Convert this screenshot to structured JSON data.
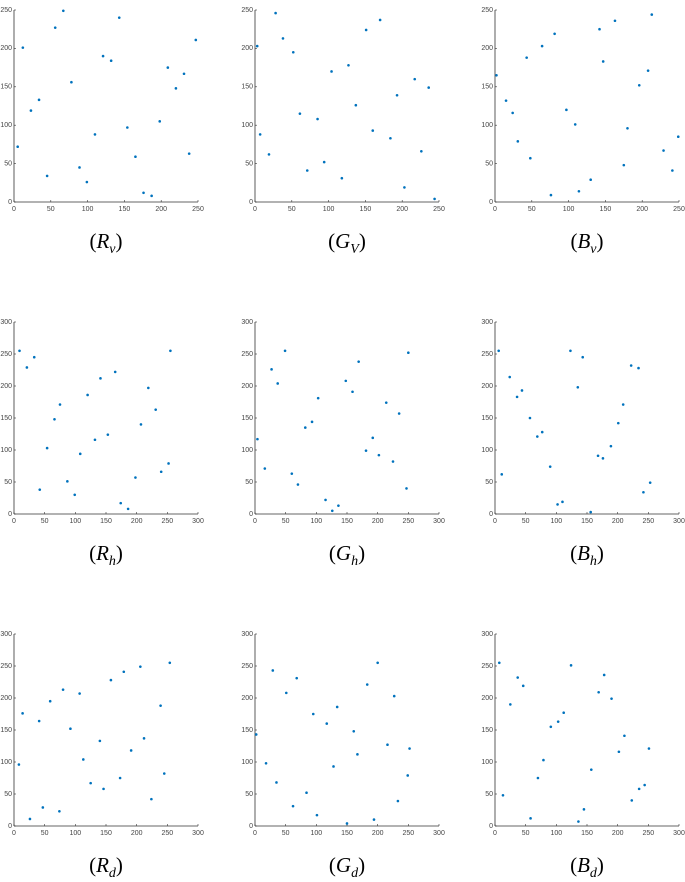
{
  "chart_data": [
    {
      "type": "scatter",
      "color": "#0072bd",
      "xlim": [
        0,
        250
      ],
      "ylim": [
        0,
        250
      ],
      "xticks": [
        0,
        50,
        100,
        150,
        200,
        250
      ],
      "yticks": [
        0,
        50,
        100,
        150,
        200,
        250
      ],
      "x": [
        12,
        45,
        78,
        110,
        143,
        176,
        209,
        238,
        23,
        56,
        89,
        121,
        154,
        187,
        220,
        247,
        5,
        34,
        67,
        99,
        132,
        165,
        198,
        231
      ],
      "y": [
        201,
        34,
        156,
        88,
        240,
        12,
        175,
        63,
        119,
        227,
        45,
        190,
        97,
        8,
        148,
        211,
        72,
        133,
        249,
        26,
        184,
        59,
        105,
        167
      ],
      "caption": {
        "open": "(",
        "symbol": "R",
        "subscript": "v",
        "close": ")"
      }
    },
    {
      "type": "scatter",
      "color": "#0072bd",
      "xlim": [
        0,
        250
      ],
      "ylim": [
        0,
        250
      ],
      "xticks": [
        0,
        50,
        100,
        150,
        200,
        250
      ],
      "yticks": [
        0,
        50,
        100,
        150,
        200,
        250
      ],
      "x": [
        7,
        38,
        71,
        104,
        137,
        170,
        203,
        236,
        19,
        52,
        85,
        118,
        151,
        184,
        217,
        244,
        28,
        61,
        94,
        127,
        160,
        193,
        226,
        3
      ],
      "y": [
        88,
        213,
        41,
        170,
        126,
        237,
        19,
        149,
        62,
        195,
        108,
        31,
        224,
        83,
        160,
        4,
        246,
        115,
        52,
        178,
        93,
        139,
        66,
        203
      ],
      "caption": {
        "open": "(",
        "symbol": "G",
        "subscript": "V",
        "close": ")"
      }
    },
    {
      "type": "scatter",
      "color": "#0072bd",
      "xlim": [
        0,
        250
      ],
      "ylim": [
        0,
        250
      ],
      "xticks": [
        0,
        50,
        100,
        150,
        200,
        250
      ],
      "yticks": [
        0,
        50,
        100,
        150,
        200,
        250
      ],
      "x": [
        15,
        48,
        81,
        114,
        147,
        180,
        213,
        241,
        2,
        31,
        64,
        97,
        130,
        163,
        196,
        229,
        43,
        76,
        109,
        142,
        175,
        208,
        24,
        249
      ],
      "y": [
        132,
        57,
        219,
        14,
        183,
        96,
        244,
        41,
        165,
        79,
        203,
        120,
        29,
        236,
        152,
        67,
        188,
        9,
        101,
        225,
        48,
        171,
        116,
        85
      ],
      "caption": {
        "open": "(",
        "symbol": "B",
        "subscript": "v",
        "close": ")"
      }
    },
    {
      "type": "scatter",
      "color": "#0072bd",
      "xlim": [
        0,
        300
      ],
      "ylim": [
        0,
        300
      ],
      "xticks": [
        0,
        50,
        100,
        150,
        200,
        250,
        300
      ],
      "yticks": [
        0,
        50,
        100,
        150,
        200,
        250,
        300
      ],
      "x": [
        9,
        42,
        75,
        108,
        141,
        174,
        207,
        240,
        21,
        54,
        87,
        120,
        153,
        186,
        219,
        252,
        33,
        66,
        99,
        132,
        165,
        198,
        231,
        255
      ],
      "y": [
        255,
        38,
        171,
        94,
        212,
        17,
        140,
        66,
        229,
        103,
        51,
        186,
        124,
        8,
        197,
        79,
        245,
        148,
        30,
        116,
        222,
        57,
        163,
        255
      ],
      "caption": {
        "open": "(",
        "symbol": "R",
        "subscript": "h",
        "close": ")"
      }
    },
    {
      "type": "scatter",
      "color": "#0072bd",
      "xlim": [
        0,
        300
      ],
      "ylim": [
        0,
        300
      ],
      "xticks": [
        0,
        50,
        100,
        150,
        200,
        250,
        300
      ],
      "yticks": [
        0,
        50,
        100,
        150,
        200,
        250,
        300
      ],
      "x": [
        4,
        37,
        70,
        103,
        136,
        169,
        202,
        235,
        16,
        49,
        82,
        115,
        148,
        181,
        214,
        247,
        27,
        60,
        93,
        126,
        159,
        192,
        225,
        250
      ],
      "y": [
        117,
        204,
        46,
        181,
        13,
        238,
        92,
        157,
        71,
        255,
        135,
        22,
        208,
        99,
        174,
        40,
        226,
        63,
        144,
        5,
        191,
        119,
        82,
        252
      ],
      "caption": {
        "open": "(",
        "symbol": "G",
        "subscript": "h",
        "close": ")"
      }
    },
    {
      "type": "scatter",
      "color": "#0072bd",
      "xlim": [
        0,
        300
      ],
      "ylim": [
        0,
        300
      ],
      "xticks": [
        0,
        50,
        100,
        150,
        200,
        250,
        300
      ],
      "yticks": [
        0,
        50,
        100,
        150,
        200,
        250,
        300
      ],
      "x": [
        11,
        44,
        77,
        110,
        143,
        176,
        209,
        242,
        24,
        57,
        90,
        123,
        156,
        189,
        222,
        253,
        36,
        69,
        102,
        135,
        168,
        201,
        234,
        6
      ],
      "y": [
        62,
        193,
        128,
        19,
        245,
        87,
        171,
        34,
        214,
        150,
        74,
        255,
        3,
        106,
        232,
        49,
        183,
        121,
        15,
        198,
        91,
        142,
        228,
        255
      ],
      "caption": {
        "open": "(",
        "symbol": "B",
        "subscript": "h",
        "close": ")"
      }
    },
    {
      "type": "scatter",
      "color": "#0072bd",
      "xlim": [
        0,
        300
      ],
      "ylim": [
        0,
        300
      ],
      "xticks": [
        0,
        50,
        100,
        150,
        200,
        250,
        300
      ],
      "yticks": [
        0,
        50,
        100,
        150,
        200,
        250,
        300
      ],
      "x": [
        14,
        47,
        80,
        113,
        146,
        179,
        212,
        245,
        26,
        59,
        92,
        125,
        158,
        191,
        224,
        254,
        8,
        41,
        74,
        107,
        140,
        173,
        206,
        239
      ],
      "y": [
        176,
        29,
        213,
        104,
        58,
        241,
        137,
        82,
        11,
        195,
        152,
        67,
        228,
        118,
        42,
        255,
        96,
        164,
        23,
        207,
        133,
        75,
        249,
        188
      ],
      "caption": {
        "open": "(",
        "symbol": "R",
        "subscript": "d",
        "close": ")"
      }
    },
    {
      "type": "scatter",
      "color": "#0072bd",
      "xlim": [
        0,
        300
      ],
      "ylim": [
        0,
        300
      ],
      "xticks": [
        0,
        50,
        100,
        150,
        200,
        250,
        300
      ],
      "yticks": [
        0,
        50,
        100,
        150,
        200,
        250,
        300
      ],
      "x": [
        2,
        35,
        68,
        101,
        134,
        167,
        200,
        233,
        18,
        51,
        84,
        117,
        150,
        183,
        216,
        249,
        29,
        62,
        95,
        128,
        161,
        194,
        227,
        252
      ],
      "y": [
        143,
        68,
        231,
        17,
        186,
        112,
        255,
        39,
        98,
        208,
        52,
        160,
        4,
        221,
        127,
        79,
        243,
        31,
        175,
        93,
        148,
        10,
        203,
        121
      ],
      "caption": {
        "open": "(",
        "symbol": "G",
        "subscript": "d",
        "close": ")"
      }
    },
    {
      "type": "scatter",
      "color": "#0072bd",
      "xlim": [
        0,
        300
      ],
      "ylim": [
        0,
        300
      ],
      "xticks": [
        0,
        50,
        100,
        150,
        200,
        250,
        300
      ],
      "yticks": [
        0,
        50,
        100,
        150,
        200,
        250,
        300
      ],
      "x": [
        13,
        46,
        79,
        112,
        145,
        178,
        211,
        244,
        25,
        58,
        91,
        124,
        157,
        190,
        223,
        251,
        37,
        70,
        103,
        136,
        169,
        202,
        235,
        7
      ],
      "y": [
        48,
        219,
        103,
        177,
        26,
        236,
        141,
        64,
        190,
        12,
        155,
        251,
        88,
        199,
        40,
        121,
        232,
        75,
        163,
        7,
        209,
        116,
        58,
        255
      ],
      "caption": {
        "open": "(",
        "symbol": "B",
        "subscript": "d",
        "close": ")"
      }
    }
  ]
}
